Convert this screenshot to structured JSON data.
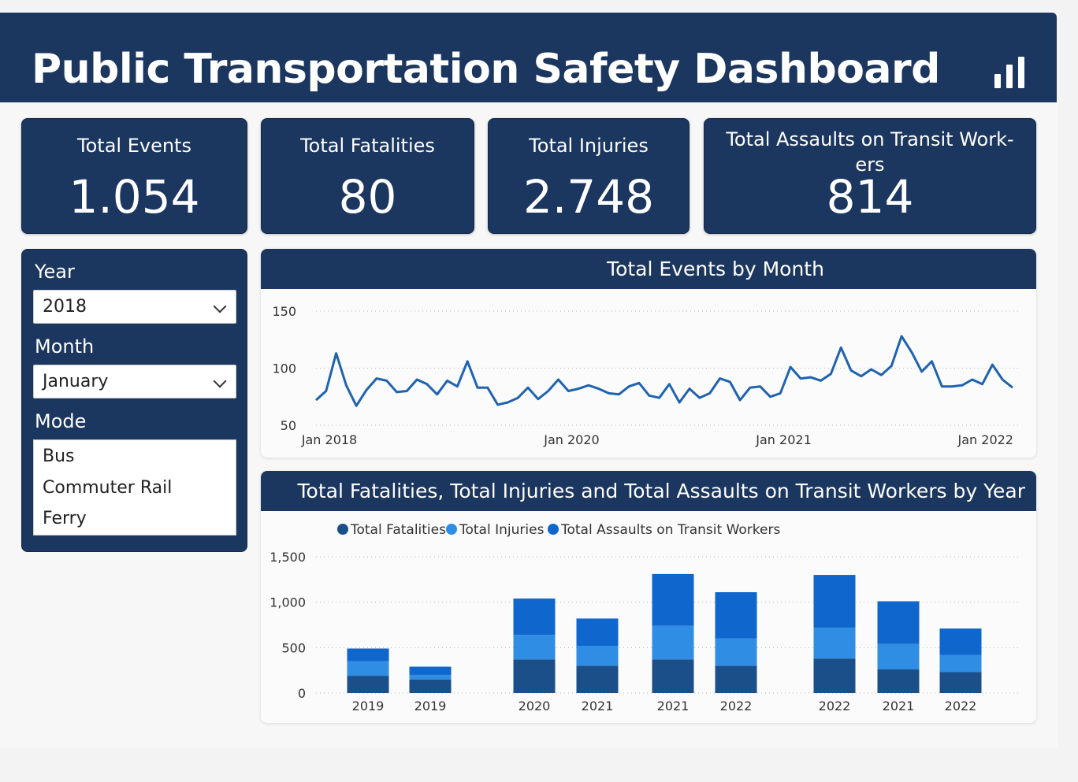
{
  "header": {
    "title": "Public Transportation Safety Dashboard",
    "icon": "bar-chart-icon"
  },
  "kpis": [
    {
      "label": "Total Events",
      "value": "1.054"
    },
    {
      "label": "Total Fatalities",
      "value": "80"
    },
    {
      "label": "Total Injuries",
      "value": "2.748"
    },
    {
      "label": "Total Assaults on Transit Work-ers",
      "value": "814"
    }
  ],
  "filters": {
    "year": {
      "label": "Year",
      "selected": "2018"
    },
    "month": {
      "label": "Month",
      "selected": "January"
    },
    "mode": {
      "label": "Mode",
      "options": [
        "Bus",
        "Commuter Rail",
        "Ferry"
      ]
    }
  },
  "colors": {
    "navy": "#1b365f",
    "line": "#1f63b0",
    "fatalities": "#1b4f8a",
    "injuries": "#2f8de4",
    "assaults": "#0f66cc"
  },
  "chart_data": [
    {
      "type": "line",
      "title": "Total Events by Month",
      "ylim": [
        50,
        150
      ],
      "yticks": [
        50,
        100,
        150
      ],
      "x_tick_labels": [
        {
          "label": "Jan 2018",
          "index": 0
        },
        {
          "label": "Jan 2020",
          "index": 24
        },
        {
          "label": "Jan 2021",
          "index": 45
        },
        {
          "label": "Jan 2022",
          "index": 65
        }
      ],
      "grid": true,
      "series": [
        {
          "values": [
            72,
            80,
            113,
            85,
            67,
            81,
            91,
            89,
            79,
            80,
            90,
            86,
            77,
            89,
            84,
            106,
            83,
            83,
            68,
            70,
            74,
            83,
            73,
            80,
            90,
            80,
            82,
            85,
            82,
            78,
            77,
            84,
            87,
            76,
            74,
            86,
            70,
            82,
            74,
            78,
            91,
            88,
            72,
            83,
            84,
            75,
            78,
            101,
            91,
            92,
            89,
            95,
            118,
            98,
            93,
            99,
            94,
            102,
            128,
            114,
            97,
            106,
            84,
            84,
            85,
            90,
            86,
            103,
            90,
            83
          ]
        }
      ]
    },
    {
      "type": "bar",
      "stacked": true,
      "title": "Total Fatalities, Total Injuries and Total Assaults on Transit Workers by Year",
      "categories": [
        "2019",
        "2019",
        "2020",
        "2021",
        "2021",
        "2022",
        "2022",
        "2021",
        "2022"
      ],
      "ylim": [
        0,
        1500
      ],
      "yticks": [
        0,
        500,
        1000,
        1500
      ],
      "ytick_labels": [
        "0",
        "500",
        "1,000",
        "1,500"
      ],
      "legend_position": "top-left",
      "grid": true,
      "series": [
        {
          "name": "Total Fatalities",
          "values": [
            190,
            150,
            370,
            300,
            370,
            300,
            380,
            260,
            230
          ]
        },
        {
          "name": "Total Injuries",
          "values": [
            160,
            50,
            270,
            220,
            370,
            300,
            340,
            280,
            190
          ]
        },
        {
          "name": "Total Assaults on Transit Workers",
          "values": [
            140,
            90,
            400,
            300,
            570,
            510,
            580,
            470,
            290
          ]
        }
      ]
    }
  ]
}
